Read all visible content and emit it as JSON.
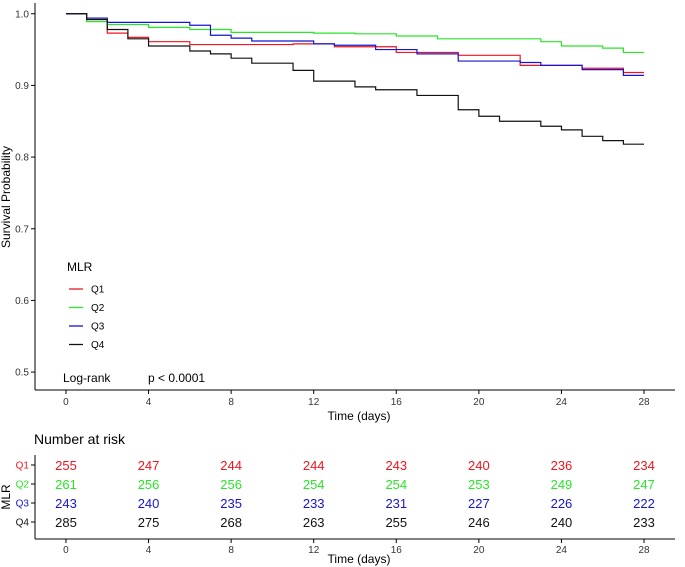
{
  "chart_data": [
    {
      "type": "line",
      "subtype": "step",
      "title": "",
      "xlabel": "Time (days)",
      "ylabel": "Survival Probability",
      "xlim": [
        -1.5,
        29.5
      ],
      "ylim": [
        0.475,
        1.015
      ],
      "x_ticks": [
        0,
        4,
        8,
        12,
        16,
        20,
        24,
        28
      ],
      "y_ticks": [
        0.5,
        0.6,
        0.7,
        0.8,
        0.9,
        1.0
      ],
      "y_tick_labels": [
        "0.5",
        "0.6",
        "0.7",
        "0.8",
        "0.9",
        "1.0"
      ],
      "grid": false,
      "legend": {
        "title": "MLR",
        "position": "bottom-left",
        "entries": [
          "Q1",
          "Q2",
          "Q3",
          "Q4"
        ]
      },
      "annotation": {
        "label": "Log-rank",
        "value": "p < 0.0001"
      },
      "series": [
        {
          "name": "Q1",
          "color": "#f0141e",
          "times": [
            0,
            1,
            2,
            3,
            4,
            6,
            10,
            11,
            13,
            16,
            19,
            22,
            25,
            27,
            28
          ],
          "values": [
            1.0,
            0.992,
            0.973,
            0.967,
            0.961,
            0.957,
            0.957,
            0.958,
            0.954,
            0.946,
            0.942,
            0.928,
            0.924,
            0.918,
            0.918
          ]
        },
        {
          "name": "Q2",
          "color": "#28e628",
          "times": [
            0,
            1,
            2,
            4,
            6,
            8,
            12,
            14,
            16,
            18,
            23,
            24,
            26,
            27,
            28
          ],
          "values": [
            1.0,
            0.989,
            0.985,
            0.981,
            0.978,
            0.974,
            0.973,
            0.972,
            0.969,
            0.965,
            0.961,
            0.955,
            0.952,
            0.946,
            0.946
          ]
        },
        {
          "name": "Q3",
          "color": "#1414d2",
          "times": [
            0,
            1,
            2,
            6,
            7,
            8,
            9,
            12,
            13,
            15,
            17,
            19,
            22,
            23,
            25,
            27,
            28
          ],
          "values": [
            1.0,
            0.994,
            0.988,
            0.984,
            0.97,
            0.966,
            0.962,
            0.958,
            0.956,
            0.95,
            0.944,
            0.934,
            0.932,
            0.928,
            0.922,
            0.914,
            0.914
          ]
        },
        {
          "name": "Q4",
          "color": "#111111",
          "times": [
            0,
            1,
            2,
            3,
            4,
            6,
            7,
            8,
            9,
            11,
            12,
            14,
            15,
            17,
            19,
            20,
            21,
            23,
            24,
            25,
            26,
            27,
            28
          ],
          "values": [
            1.0,
            0.992,
            0.978,
            0.965,
            0.955,
            0.948,
            0.944,
            0.938,
            0.931,
            0.921,
            0.906,
            0.898,
            0.894,
            0.886,
            0.866,
            0.857,
            0.85,
            0.843,
            0.838,
            0.829,
            0.823,
            0.818,
            0.818
          ]
        }
      ]
    },
    {
      "type": "table",
      "title": "Number at risk",
      "xlabel": "Time (days)",
      "ylabel": "MLR",
      "x_ticks": [
        0,
        4,
        8,
        12,
        16,
        20,
        24,
        28
      ],
      "rows": [
        {
          "name": "Q1",
          "color": "#f0141e",
          "values": [
            255,
            247,
            244,
            244,
            243,
            240,
            236,
            234
          ]
        },
        {
          "name": "Q2",
          "color": "#28e628",
          "values": [
            261,
            256,
            256,
            254,
            254,
            253,
            249,
            247
          ]
        },
        {
          "name": "Q3",
          "color": "#1414d2",
          "values": [
            243,
            240,
            235,
            233,
            231,
            227,
            226,
            222
          ]
        },
        {
          "name": "Q4",
          "color": "#111111",
          "values": [
            285,
            275,
            268,
            263,
            255,
            246,
            240,
            233
          ]
        }
      ]
    }
  ]
}
